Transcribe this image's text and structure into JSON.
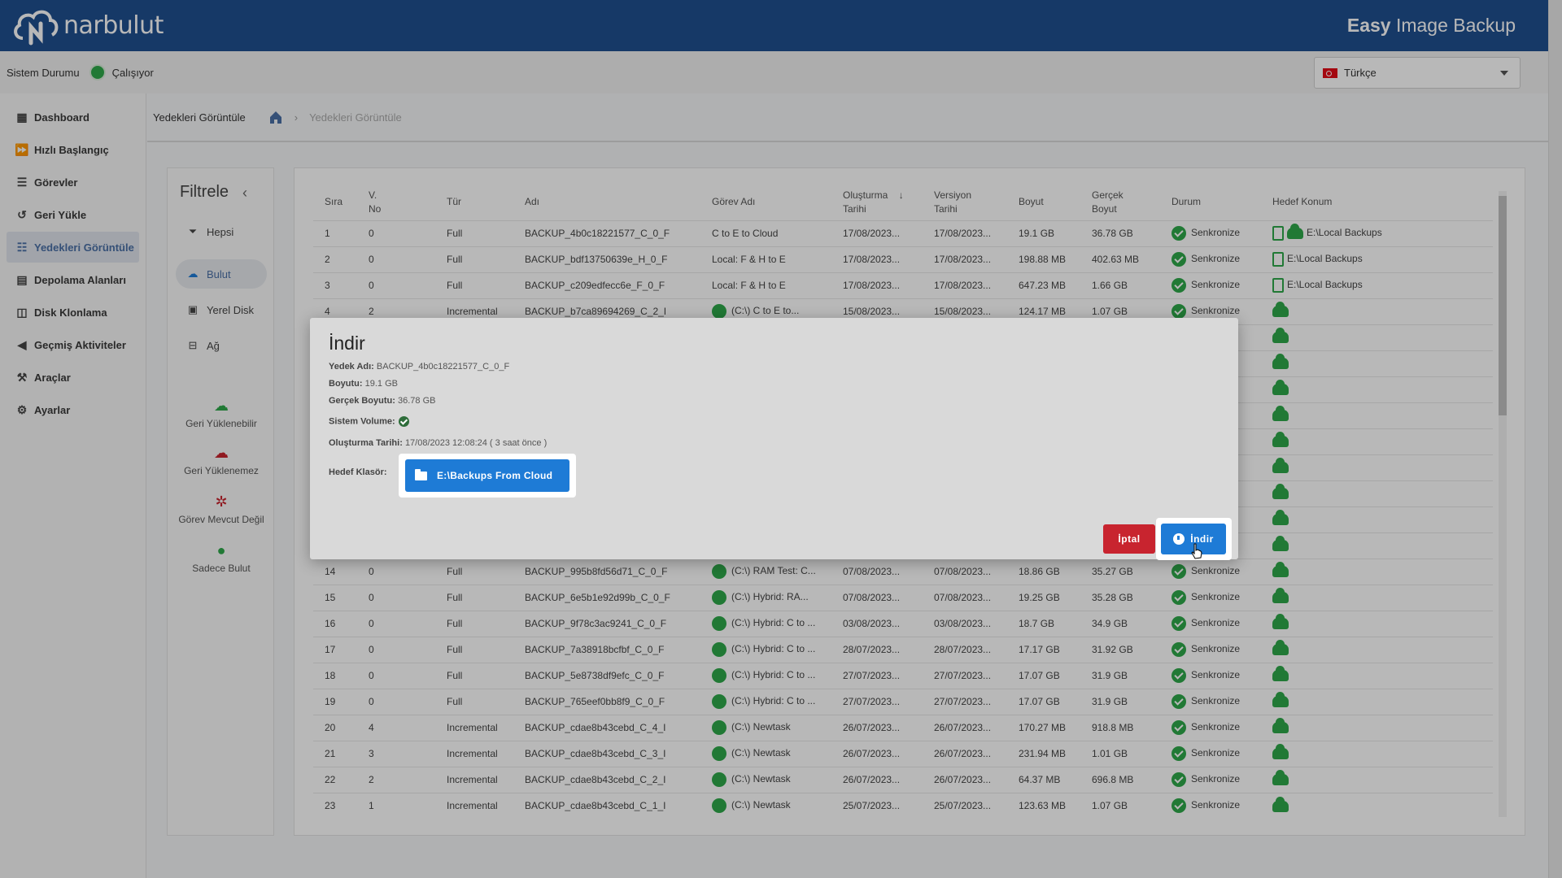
{
  "header": {
    "logo_text": "narbulut",
    "app_name_bold": "Easy",
    "app_name_rest": " Image Backup"
  },
  "status": {
    "label": "Sistem Durumu",
    "value": "Çalışıyor",
    "color": "#2ea84a"
  },
  "language": {
    "selected": "Türkçe"
  },
  "sidebar": {
    "items": [
      {
        "label": "Dashboard",
        "icon": "dashboard-icon"
      },
      {
        "label": "Hızlı Başlangıç",
        "icon": "fast-forward-icon"
      },
      {
        "label": "Görevler",
        "icon": "tasks-icon"
      },
      {
        "label": "Geri Yükle",
        "icon": "restore-icon"
      },
      {
        "label": "Yedekleri Görüntüle",
        "icon": "list-icon"
      },
      {
        "label": "Depolama Alanları",
        "icon": "storage-icon"
      },
      {
        "label": "Disk Klonlama",
        "icon": "disk-clone-icon"
      },
      {
        "label": "Geçmiş Aktiviteler",
        "icon": "history-icon"
      },
      {
        "label": "Araçlar",
        "icon": "tools-icon"
      },
      {
        "label": "Ayarlar",
        "icon": "settings-icon"
      }
    ]
  },
  "breadcrumb": {
    "title": "Yedekleri Görüntüle",
    "separator": "›",
    "current": "Yedekleri Görüntüle"
  },
  "filter": {
    "title": "Filtrele",
    "collapse": "‹",
    "items": [
      "Hepsi",
      "Bulut",
      "Yerel Disk",
      "Ağ"
    ],
    "legend": [
      "Geri Yüklenebilir",
      "Geri Yüklenemez",
      "Görev Mevcut Değil",
      "Sadece Bulut"
    ]
  },
  "table": {
    "headers": {
      "sira": "Sıra",
      "vno_1": "V.",
      "vno_2": "No",
      "tur": "Tür",
      "adi": "Adı",
      "gorev": "Görev Adı",
      "olusturma_1": "Oluşturma",
      "olusturma_2": "Tarihi",
      "sort": "↓",
      "versiyon_1": "Versiyon",
      "versiyon_2": "Tarihi",
      "boyut": "Boyut",
      "gercek_1": "Gerçek",
      "gercek_2": "Boyut",
      "durum": "Durum",
      "hedef": "Hedef Konum"
    },
    "rows": [
      [
        "1",
        "0",
        "Full",
        "BACKUP_4b0c18221577_C_0_F",
        "C to E to Cloud",
        "17/08/2023...",
        "17/08/2023...",
        "19.1 GB",
        "36.78 GB",
        "Senkronize",
        "E:\\Local Backups"
      ],
      [
        "2",
        "0",
        "Full",
        "BACKUP_bdf13750639e_H_0_F",
        "Local: F & H to E",
        "17/08/2023...",
        "17/08/2023...",
        "198.88 MB",
        "402.63 MB",
        "Senkronize",
        "E:\\Local Backups"
      ],
      [
        "3",
        "0",
        "Full",
        "BACKUP_c209edfecc6e_F_0_F",
        "Local: F & H to E",
        "17/08/2023...",
        "17/08/2023...",
        "647.23 MB",
        "1.66 GB",
        "Senkronize",
        "E:\\Local Backups"
      ],
      [
        "4",
        "2",
        "Incremental",
        "BACKUP_b7ca89694269_C_2_I",
        "(C:\\) C to E to...",
        "15/08/2023...",
        "15/08/2023...",
        "124.17 MB",
        "1.07 GB",
        "Senkronize",
        ""
      ],
      [
        "",
        "",
        "",
        "",
        "",
        "",
        "",
        "",
        "",
        "ze",
        ""
      ],
      [
        "",
        "",
        "",
        "",
        "",
        "",
        "",
        "",
        "",
        "ze",
        ""
      ],
      [
        "",
        "",
        "",
        "",
        "",
        "",
        "",
        "",
        "",
        "ze",
        ""
      ],
      [
        "",
        "",
        "",
        "",
        "",
        "",
        "",
        "",
        "",
        "ze",
        ""
      ],
      [
        "",
        "",
        "",
        "",
        "",
        "",
        "",
        "",
        "",
        "ze",
        ""
      ],
      [
        "",
        "",
        "",
        "",
        "",
        "",
        "",
        "",
        "",
        "ze",
        ""
      ],
      [
        "",
        "",
        "",
        "",
        "",
        "",
        "",
        "",
        "",
        "ze",
        ""
      ],
      [
        "",
        "",
        "",
        "",
        "",
        "",
        "",
        "",
        "",
        "ze",
        ""
      ],
      [
        "",
        "",
        "",
        "",
        "",
        "",
        "",
        "",
        "",
        "ze",
        ""
      ],
      [
        "14",
        "0",
        "Full",
        "BACKUP_995b8fd56d71_C_0_F",
        "(C:\\) RAM Test: C...",
        "07/08/2023...",
        "07/08/2023...",
        "18.86 GB",
        "35.27 GB",
        "Senkronize",
        ""
      ],
      [
        "15",
        "0",
        "Full",
        "BACKUP_6e5b1e92d99b_C_0_F",
        "(C:\\) Hybrid: RA...",
        "07/08/2023...",
        "07/08/2023...",
        "19.25 GB",
        "35.28 GB",
        "Senkronize",
        ""
      ],
      [
        "16",
        "0",
        "Full",
        "BACKUP_9f78c3ac9241_C_0_F",
        "(C:\\) Hybrid: C to ...",
        "03/08/2023...",
        "03/08/2023...",
        "18.7 GB",
        "34.9 GB",
        "Senkronize",
        ""
      ],
      [
        "17",
        "0",
        "Full",
        "BACKUP_7a38918bcfbf_C_0_F",
        "(C:\\) Hybrid: C to ...",
        "28/07/2023...",
        "28/07/2023...",
        "17.17 GB",
        "31.92 GB",
        "Senkronize",
        ""
      ],
      [
        "18",
        "0",
        "Full",
        "BACKUP_5e8738df9efc_C_0_F",
        "(C:\\) Hybrid: C to ...",
        "27/07/2023...",
        "27/07/2023...",
        "17.07 GB",
        "31.9 GB",
        "Senkronize",
        ""
      ],
      [
        "19",
        "0",
        "Full",
        "BACKUP_765eef0bb8f9_C_0_F",
        "(C:\\) Hybrid: C to ...",
        "27/07/2023...",
        "27/07/2023...",
        "17.07 GB",
        "31.9 GB",
        "Senkronize",
        ""
      ],
      [
        "20",
        "4",
        "Incremental",
        "BACKUP_cdae8b43cebd_C_4_I",
        "(C:\\) Newtask",
        "26/07/2023...",
        "26/07/2023...",
        "170.27 MB",
        "918.8 MB",
        "Senkronize",
        ""
      ],
      [
        "21",
        "3",
        "Incremental",
        "BACKUP_cdae8b43cebd_C_3_I",
        "(C:\\) Newtask",
        "26/07/2023...",
        "26/07/2023...",
        "231.94 MB",
        "1.01 GB",
        "Senkronize",
        ""
      ],
      [
        "22",
        "2",
        "Incremental",
        "BACKUP_cdae8b43cebd_C_2_I",
        "(C:\\) Newtask",
        "26/07/2023...",
        "26/07/2023...",
        "64.37 MB",
        "696.8 MB",
        "Senkronize",
        ""
      ],
      [
        "23",
        "1",
        "Incremental",
        "BACKUP_cdae8b43cebd_C_1_I",
        "(C:\\) Newtask",
        "25/07/2023...",
        "25/07/2023...",
        "123.63 MB",
        "1.07 GB",
        "Senkronize",
        ""
      ]
    ]
  },
  "modal": {
    "title": "İndir",
    "backup_name_label": "Yedek Adı:",
    "backup_name": "BACKUP_4b0c18221577_C_0_F",
    "size_label": "Boyutu:",
    "size": "19.1 GB",
    "real_size_label": "Gerçek Boyutu:",
    "real_size": "36.78 GB",
    "system_volume_label": "Sistem Volume:",
    "created_label": "Oluşturma Tarihi:",
    "created": "17/08/2023 12:08:24 ( 3 saat önce )",
    "target_label": "Hedef Klasör:",
    "target_folder": "E:\\Backups From Cloud",
    "cancel_label": "İptal",
    "download_label": "İndir"
  }
}
